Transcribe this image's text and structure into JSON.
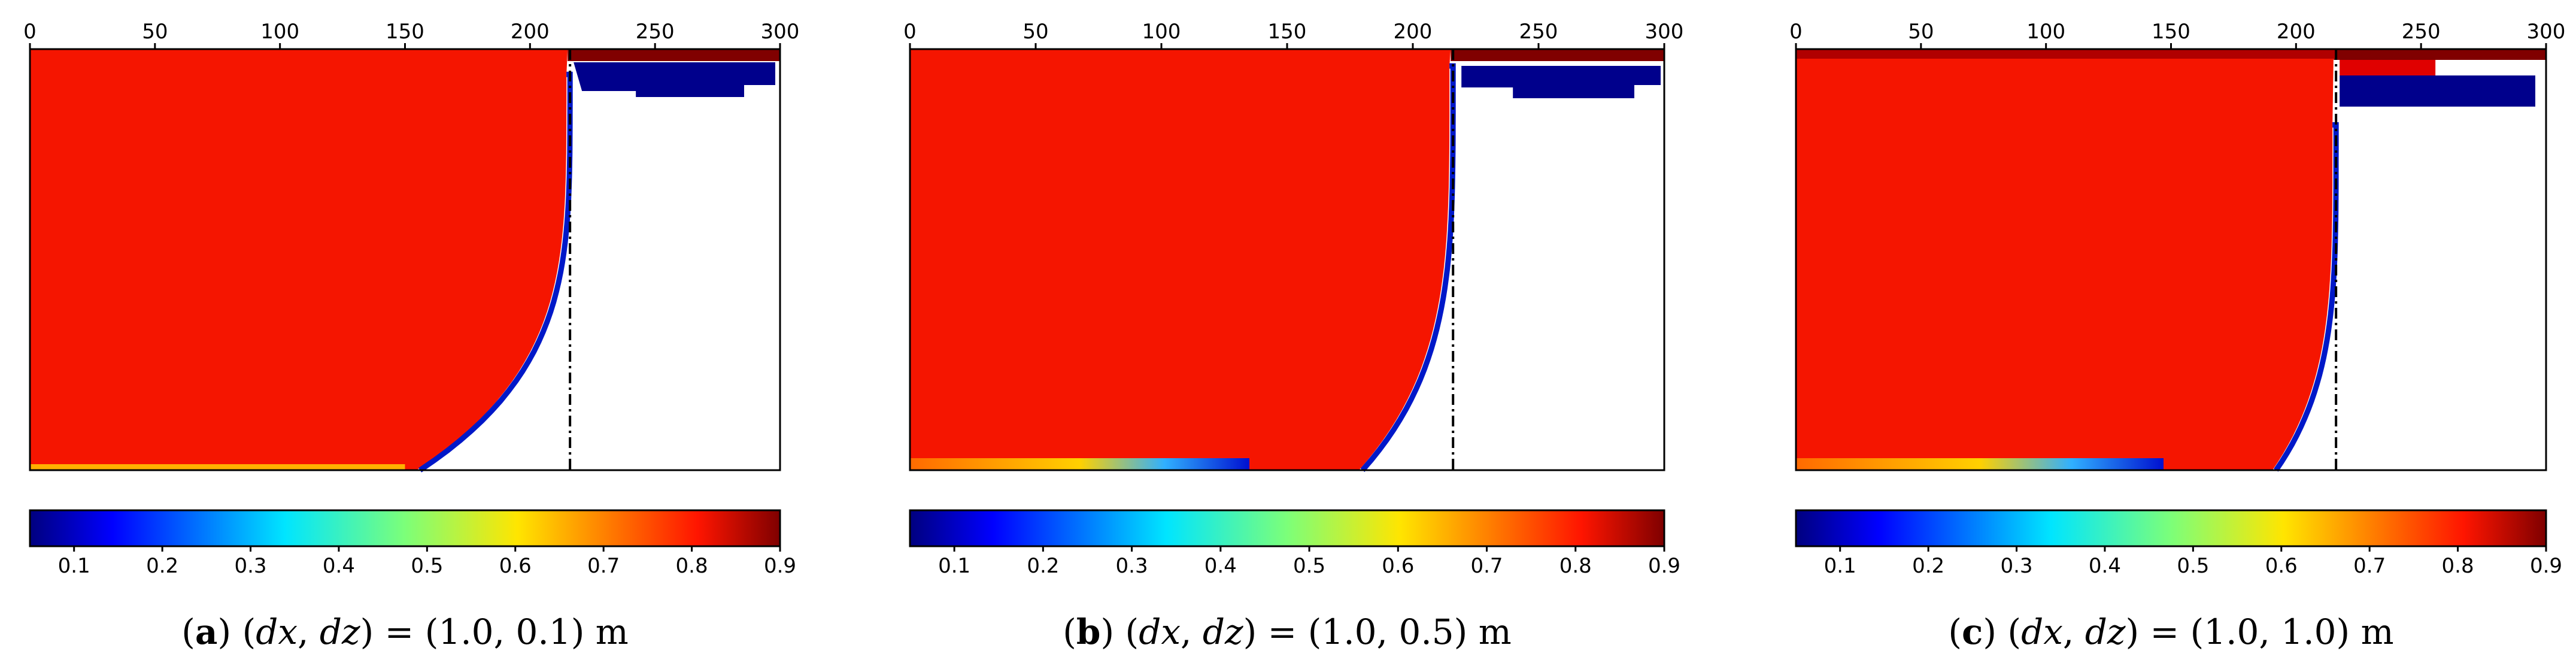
{
  "chart_data": [
    {
      "type": "heatmap",
      "panel_label": "a",
      "caption": {
        "paren_open": "(",
        "label": "a",
        "paren_close": ")",
        "lhs_open": "(",
        "dx": "dx",
        "comma": ",",
        "dz": "dz",
        "lhs_close": ")",
        "equals": "=",
        "value": "(1.0, 0.1)",
        "unit": "m"
      },
      "x_ticks": [
        "0",
        "50",
        "100",
        "150",
        "200",
        "250",
        "300"
      ],
      "xlim": [
        0,
        300
      ],
      "dashdot_x": 216,
      "colorbar": {
        "ticks": [
          "0.1",
          "0.2",
          "0.3",
          "0.4",
          "0.5",
          "0.6",
          "0.7",
          "0.8",
          "0.9"
        ],
        "range": [
          0.05,
          0.9
        ],
        "colormap": "jet"
      },
      "colors": {
        "red": "#f51500",
        "darkred": "#800000",
        "navy": "#00008c"
      }
    },
    {
      "type": "heatmap",
      "panel_label": "b",
      "caption": {
        "paren_open": "(",
        "label": "b",
        "paren_close": ")",
        "lhs_open": "(",
        "dx": "dx",
        "comma": ",",
        "dz": "dz",
        "lhs_close": ")",
        "equals": "=",
        "value": "(1.0, 0.5)",
        "unit": "m"
      },
      "x_ticks": [
        "0",
        "50",
        "100",
        "150",
        "200",
        "250",
        "300"
      ],
      "xlim": [
        0,
        300
      ],
      "dashdot_x": 216,
      "colorbar": {
        "ticks": [
          "0.1",
          "0.2",
          "0.3",
          "0.4",
          "0.5",
          "0.6",
          "0.7",
          "0.8",
          "0.9"
        ],
        "range": [
          0.05,
          0.9
        ],
        "colormap": "jet"
      },
      "colors": {
        "red": "#f51500",
        "darkred": "#800000",
        "navy": "#00008c"
      }
    },
    {
      "type": "heatmap",
      "panel_label": "c",
      "caption": {
        "paren_open": "(",
        "label": "c",
        "paren_close": ")",
        "lhs_open": "(",
        "dx": "dx",
        "comma": ",",
        "dz": "dz",
        "lhs_close": ")",
        "equals": "=",
        "value": "(1.0, 1.0)",
        "unit": "m"
      },
      "x_ticks": [
        "0",
        "50",
        "100",
        "150",
        "200",
        "250",
        "300"
      ],
      "xlim": [
        0,
        300
      ],
      "dashdot_x": 216,
      "colorbar": {
        "ticks": [
          "0.1",
          "0.2",
          "0.3",
          "0.4",
          "0.5",
          "0.6",
          "0.7",
          "0.8",
          "0.9"
        ],
        "range": [
          0.05,
          0.9
        ],
        "colormap": "jet"
      },
      "colors": {
        "red": "#f51500",
        "darkred": "#800000",
        "navy": "#00008c"
      }
    }
  ]
}
